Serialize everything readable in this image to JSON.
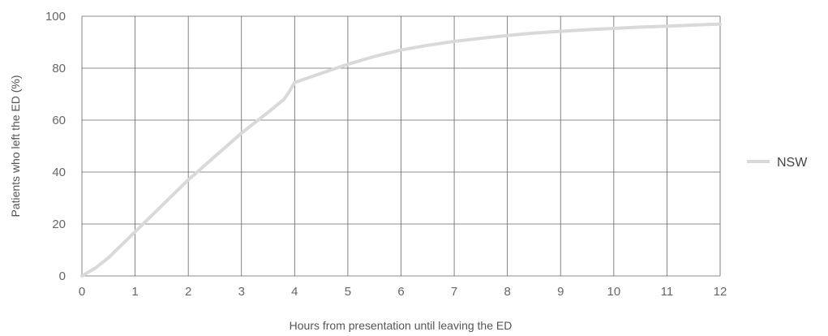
{
  "chart_data": {
    "type": "line",
    "title": "",
    "xlabel": "Hours from presentation until leaving the ED",
    "ylabel": "Patients who left the ED (%)",
    "xlim": [
      0,
      12
    ],
    "ylim": [
      0,
      100
    ],
    "x_ticks": [
      "0",
      "1",
      "2",
      "3",
      "4",
      "5",
      "6",
      "7",
      "8",
      "9",
      "10",
      "11",
      "12"
    ],
    "y_ticks": [
      "0",
      "20",
      "40",
      "60",
      "80",
      "100"
    ],
    "grid": true,
    "legend_position": "right",
    "series": [
      {
        "name": "NSW",
        "color": "#d9d9d9",
        "x": [
          0,
          0.25,
          0.5,
          0.75,
          1,
          1.5,
          2,
          2.5,
          3,
          3.5,
          3.8,
          3.9,
          4,
          4.5,
          5,
          5.5,
          6,
          6.5,
          7,
          7.5,
          8,
          8.5,
          9,
          9.5,
          10,
          10.5,
          11,
          11.5,
          12
        ],
        "y": [
          0,
          3,
          7,
          12,
          17,
          27,
          37,
          46,
          55,
          63,
          68,
          71,
          74.5,
          78,
          81.5,
          84.5,
          87,
          88.8,
          90.3,
          91.5,
          92.6,
          93.5,
          94.2,
          94.8,
          95.3,
          95.8,
          96.2,
          96.6,
          97
        ]
      }
    ]
  }
}
